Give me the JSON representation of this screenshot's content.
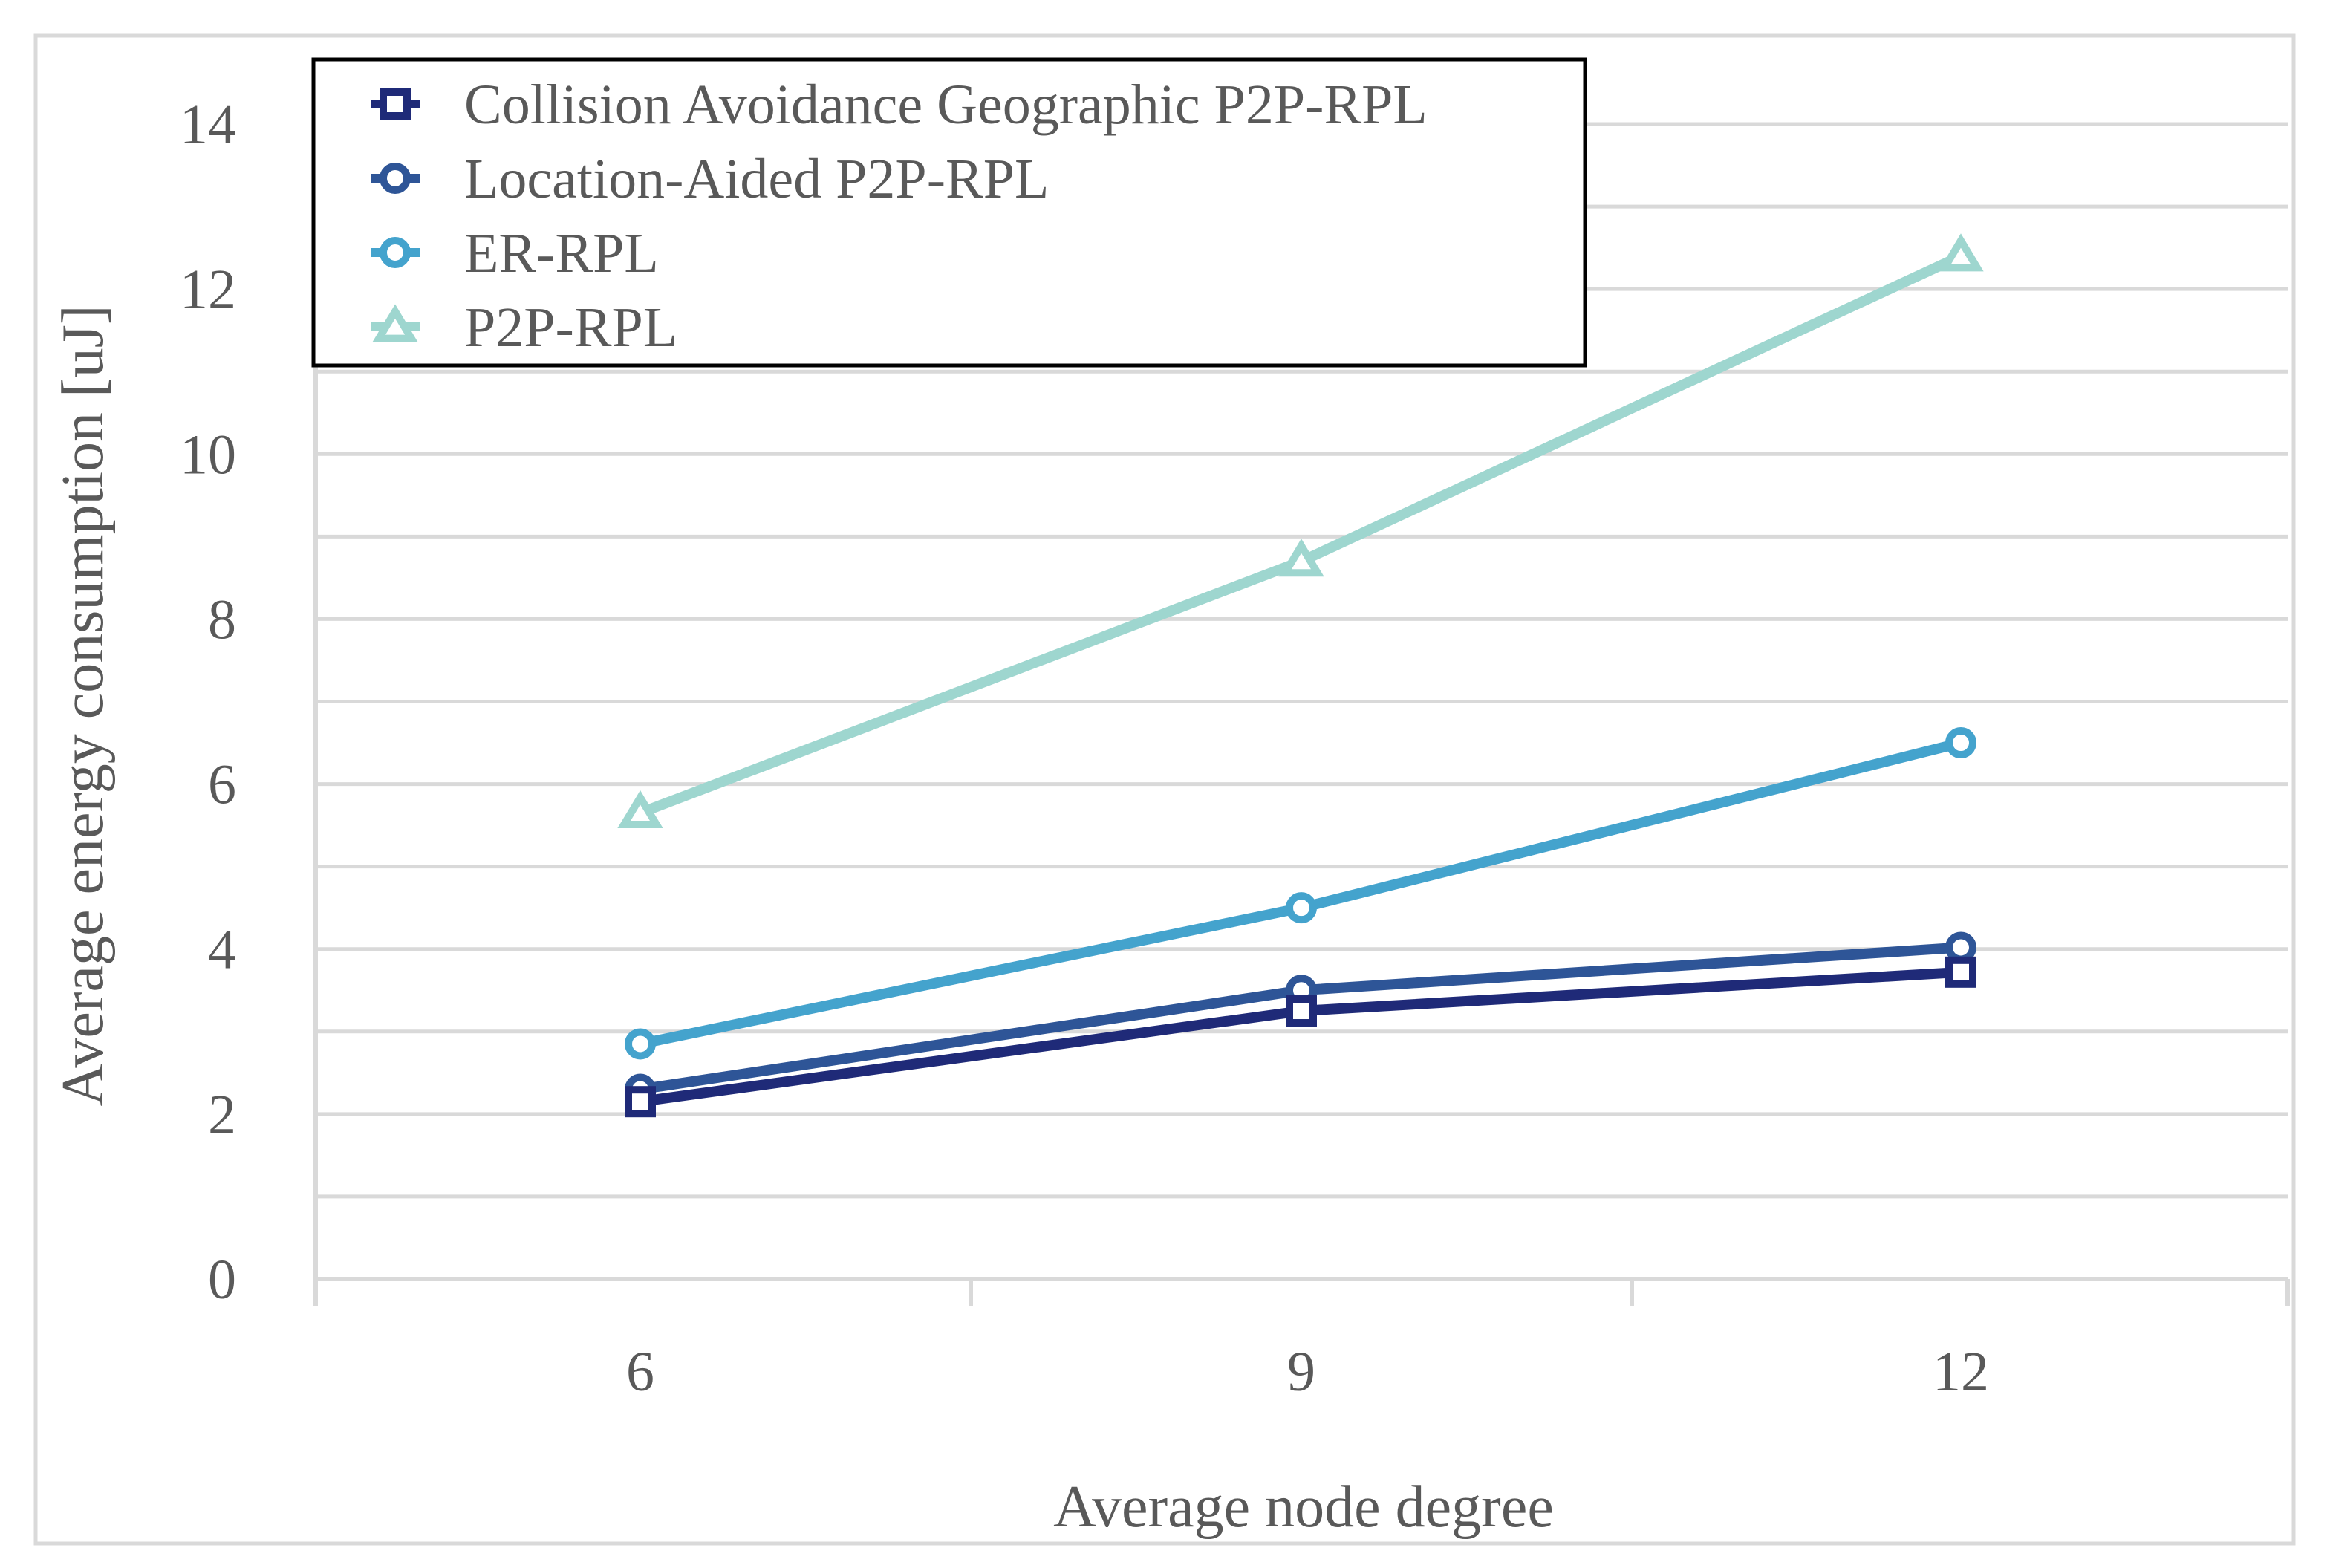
{
  "chart_data": {
    "type": "line",
    "title": "",
    "xlabel": "Average node degree",
    "ylabel": "Average energy consumption [uJ]",
    "categories": [
      "6",
      "9",
      "12"
    ],
    "x": [
      6,
      9,
      12
    ],
    "ylim": [
      0,
      14
    ],
    "yticks": [
      0,
      2,
      4,
      6,
      8,
      10,
      12,
      14
    ],
    "grid": true,
    "legend_position": "top-left",
    "series": [
      {
        "name": "Collision Avoidance Geographic P2P-RPL",
        "values": [
          2.15,
          3.25,
          3.72
        ],
        "color": "#1f2a78",
        "marker": "square"
      },
      {
        "name": "Location-Aided P2P-RPL",
        "values": [
          2.3,
          3.5,
          4.02
        ],
        "color": "#2e5597",
        "marker": "circle"
      },
      {
        "name": "ER-RPL",
        "values": [
          2.85,
          4.5,
          6.5
        ],
        "color": "#44a3cd",
        "marker": "circle"
      },
      {
        "name": "P2P-RPL",
        "values": [
          5.65,
          8.7,
          12.4
        ],
        "color": "#9ed6cf",
        "marker": "triangle"
      }
    ]
  }
}
